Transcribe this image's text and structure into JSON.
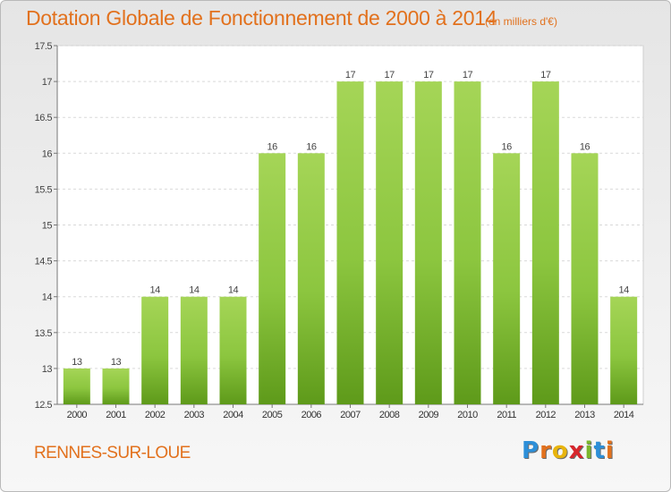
{
  "title": "Dotation Globale de Fonctionnement de 2000 à 2014",
  "subtitle": "(en milliers d'€)",
  "location": "RENNES-SUR-LOUE",
  "logo": {
    "letters": [
      {
        "char": "P",
        "color": "#2d8fd8"
      },
      {
        "char": "r",
        "color": "#e2711d"
      },
      {
        "char": "o",
        "color": "#e8b40e"
      },
      {
        "char": "x",
        "color": "#d7262c"
      },
      {
        "char": "i",
        "color": "#7bb62d"
      },
      {
        "char": "t",
        "color": "#2d8fd8"
      },
      {
        "char": "i",
        "color": "#e2711d"
      }
    ]
  },
  "chart_data": {
    "type": "bar",
    "categories": [
      "2000",
      "2001",
      "2002",
      "2003",
      "2004",
      "2005",
      "2006",
      "2007",
      "2008",
      "2009",
      "2010",
      "2011",
      "2012",
      "2013",
      "2014"
    ],
    "values": [
      13,
      13,
      14,
      14,
      14,
      16,
      16,
      17,
      17,
      17,
      17,
      16,
      17,
      16,
      14
    ],
    "value_labels": [
      "13",
      "13",
      "14",
      "14",
      "14",
      "16",
      "16",
      "17",
      "17",
      "17",
      "17",
      "16",
      "17",
      "16",
      "14"
    ],
    "y_ticks": [
      "12.5",
      "13",
      "13.5",
      "14",
      "14.5",
      "15",
      "15.5",
      "16",
      "16.5",
      "17",
      "17.5"
    ],
    "ylim": [
      12.5,
      17.5
    ],
    "grid": true,
    "bar_color": "#8cc63f",
    "bar_color_dark": "#5e9a1a",
    "text_color": "#e2711d"
  }
}
